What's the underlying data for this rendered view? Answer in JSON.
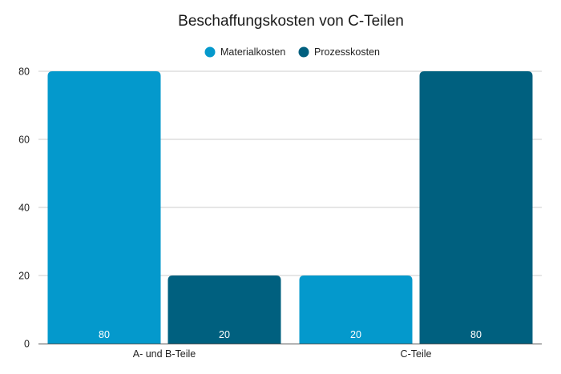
{
  "chart_data": {
    "type": "bar",
    "title": "Beschaffungskosten von C-Teilen",
    "categories": [
      "A- und B-Teile",
      "C-Teile"
    ],
    "series": [
      {
        "name": "Materialkosten",
        "values": [
          80,
          20
        ],
        "color": "#0499CC"
      },
      {
        "name": "Prozesskosten",
        "values": [
          20,
          80
        ],
        "color": "#00607F"
      }
    ],
    "ylim": [
      0,
      80
    ],
    "yticks": [
      "0",
      "20",
      "40",
      "60",
      "80"
    ],
    "data_labels": true,
    "grid": true,
    "legend_position": "top-center"
  }
}
